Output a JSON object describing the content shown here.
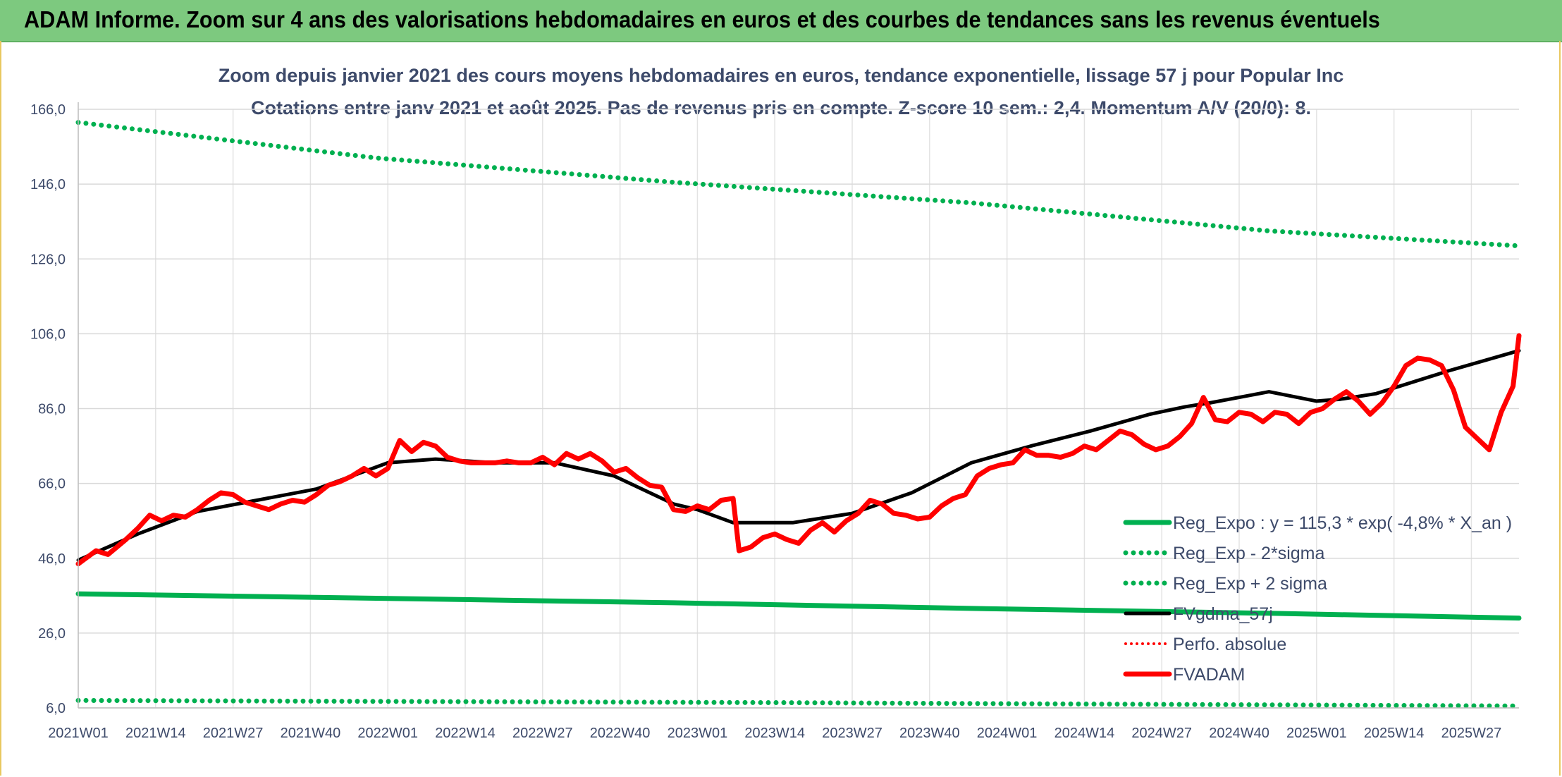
{
  "banner": {
    "title": "ADAM Informe. Zoom sur 4 ans des valorisations hebdomadaires en euros et des courbes de tendances sans les revenus éventuels"
  },
  "chart_data": {
    "type": "line",
    "title": "Zoom depuis janvier 2021 des cours moyens hebdomadaires en euros, tendance exponentielle, lissage 57 j pour Popular Inc",
    "subtitle": "Cotations entre janv 2021 et août 2025. Pas de revenus pris en compte. Z-score 10 sem.: 2,4. Momentum A/V (20/0): 8.",
    "ylim": [
      6,
      166
    ],
    "yticks": [
      "6,0",
      "26,0",
      "46,0",
      "66,0",
      "86,0",
      "106,0",
      "126,0",
      "146,0",
      "166,0"
    ],
    "categories": [
      "2021W01",
      "2021W14",
      "2021W27",
      "2021W40",
      "2022W01",
      "2022W14",
      "2022W27",
      "2022W40",
      "2023W01",
      "2023W14",
      "2023W27",
      "2023W40",
      "2024W01",
      "2024W14",
      "2024W27",
      "2024W40",
      "2025W01",
      "2025W14",
      "2025W27"
    ],
    "grid": true,
    "legend_position": "bottom-right",
    "colors": {
      "green": "#00b050",
      "black": "#000000",
      "red": "#ff0000",
      "axis_text": "#3d4a6a"
    },
    "series": [
      {
        "name": "Reg_Expo : y = 115,3 * exp( -4,8% *  X_an )",
        "style": "solid",
        "color": "#00b050",
        "x": [
          0,
          50,
          100,
          150,
          200,
          242
        ],
        "values": [
          36.5,
          35.3,
          34.1,
          32.6,
          31.3,
          30.0
        ]
      },
      {
        "name": "Reg_Exp - 2*sigma",
        "style": "dotted",
        "color": "#00b050",
        "x": [
          0,
          120,
          242
        ],
        "values": [
          8.0,
          7.4,
          6.5
        ]
      },
      {
        "name": "Reg_Exp + 2 sigma",
        "style": "dotted",
        "color": "#00b050",
        "x": [
          0,
          50,
          100,
          150,
          200,
          242
        ],
        "values": [
          162.5,
          153.0,
          146.5,
          141.0,
          133.5,
          129.5
        ]
      },
      {
        "name": "FVgdma_57j",
        "style": "solid",
        "color": "#000000",
        "x": [
          0,
          10,
          20,
          30,
          40,
          52,
          60,
          70,
          80,
          90,
          100,
          104,
          110,
          120,
          130,
          140,
          145,
          150,
          160,
          170,
          180,
          186,
          190,
          200,
          208,
          212,
          218,
          230,
          242
        ],
        "values": [
          45.5,
          52.5,
          58.5,
          61.5,
          64.5,
          71.5,
          72.5,
          71.5,
          71.5,
          68.0,
          60.5,
          59.0,
          55.5,
          55.5,
          58.0,
          63.5,
          67.5,
          71.5,
          76.0,
          80.0,
          84.5,
          86.5,
          87.5,
          90.5,
          88.0,
          88.5,
          90.0,
          96.0,
          101.5
        ]
      },
      {
        "name": "Perfo. absolue",
        "style": "dotted",
        "color": "#ff0000",
        "x": [],
        "values": []
      },
      {
        "name": "FVADAM",
        "style": "solid",
        "color": "#ff0000",
        "x": [
          0,
          3,
          5,
          8,
          10,
          12,
          14,
          16,
          18,
          20,
          22,
          24,
          26,
          28,
          30,
          32,
          34,
          36,
          38,
          40,
          42,
          44,
          46,
          48,
          50,
          52,
          54,
          56,
          58,
          60,
          62,
          64,
          66,
          68,
          70,
          72,
          74,
          76,
          78,
          80,
          82,
          84,
          86,
          88,
          90,
          92,
          94,
          96,
          98,
          100,
          102,
          104,
          106,
          108,
          110,
          111,
          113,
          115,
          117,
          119,
          121,
          123,
          125,
          127,
          129,
          131,
          133,
          135,
          137,
          139,
          141,
          143,
          145,
          147,
          149,
          151,
          153,
          155,
          157,
          159,
          161,
          163,
          165,
          167,
          169,
          171,
          173,
          175,
          177,
          179,
          181,
          183,
          185,
          187,
          189,
          191,
          193,
          195,
          197,
          199,
          201,
          203,
          205,
          207,
          209,
          211,
          213,
          215,
          217,
          219,
          221,
          223,
          225,
          227,
          229,
          231,
          233,
          235,
          237,
          239,
          241,
          242
        ],
        "values": [
          44.5,
          48.0,
          47.0,
          51.0,
          54.0,
          57.5,
          56.0,
          57.5,
          57.0,
          59.0,
          61.5,
          63.5,
          63.0,
          61.0,
          60.0,
          59.0,
          60.5,
          61.5,
          61.0,
          63.0,
          65.5,
          66.5,
          68.0,
          70.0,
          68.0,
          70.0,
          77.5,
          74.5,
          77.0,
          76.0,
          73.0,
          72.0,
          71.5,
          71.5,
          71.5,
          72.0,
          71.5,
          71.5,
          73.0,
          71.0,
          74.0,
          72.5,
          74.0,
          72.0,
          69.0,
          70.0,
          67.5,
          65.5,
          65.0,
          59.0,
          58.5,
          60.0,
          59.0,
          61.5,
          62.0,
          48.0,
          49.0,
          51.5,
          52.5,
          51.0,
          50.0,
          53.5,
          55.5,
          53.0,
          56.0,
          58.0,
          61.5,
          60.5,
          58.0,
          57.5,
          56.5,
          57.0,
          60.0,
          62.0,
          63.0,
          68.0,
          70.0,
          71.0,
          71.5,
          75.0,
          73.5,
          73.5,
          73.0,
          74.0,
          76.0,
          75.0,
          77.5,
          80.0,
          79.0,
          76.5,
          75.0,
          76.0,
          78.5,
          82.0,
          89.0,
          83.0,
          82.5,
          85.0,
          84.5,
          82.5,
          85.0,
          84.5,
          82.0,
          85.0,
          86.0,
          88.5,
          90.5,
          88.0,
          84.5,
          87.5,
          92.0,
          97.5,
          99.5,
          99.0,
          97.5,
          91.0,
          81.0,
          78.0,
          75.0,
          85.0,
          92.0,
          105.5
        ]
      }
    ]
  }
}
